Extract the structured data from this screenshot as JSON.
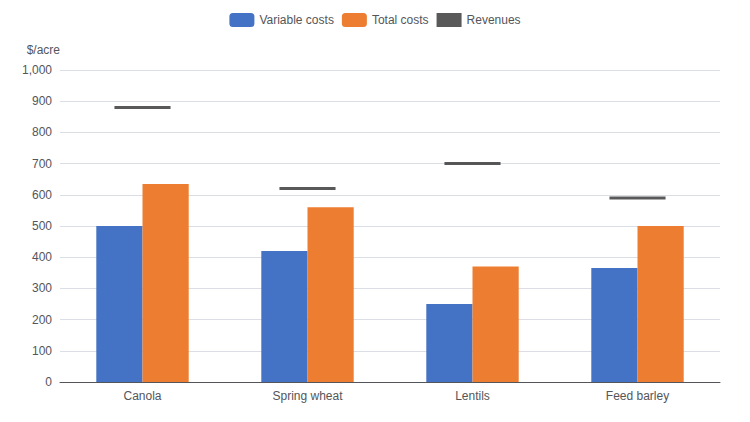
{
  "chart_data": {
    "type": "bar",
    "categories": [
      "Canola",
      "Spring wheat",
      "Lentils",
      "Feed barley"
    ],
    "series": [
      {
        "name": "Variable costs",
        "type": "bar",
        "color": "#4472C4",
        "values": [
          500,
          420,
          250,
          365
        ]
      },
      {
        "name": "Total costs",
        "type": "bar",
        "color": "#ED7D31",
        "values": [
          635,
          560,
          370,
          500
        ]
      },
      {
        "name": "Revenues",
        "type": "scatter",
        "marker": "line",
        "color": "#2F2F2F",
        "values": [
          880,
          620,
          700,
          590
        ]
      }
    ],
    "ylabel": "$/acre",
    "ylim": [
      0,
      1000
    ],
    "yticks": [
      0,
      100,
      200,
      300,
      400,
      500,
      600,
      700,
      800,
      900,
      {
        "value": 1000,
        "label": "1,000"
      }
    ],
    "grid": true,
    "legend": "top"
  }
}
